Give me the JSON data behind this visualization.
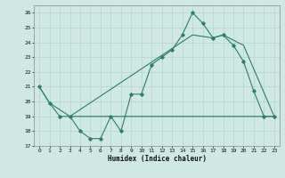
{
  "background_color": "#cfe8e4",
  "grid_color": "#b8d8d4",
  "line_color": "#2e7d6e",
  "xlabel": "Humidex (Indice chaleur)",
  "xlim": [
    -0.5,
    23.5
  ],
  "ylim": [
    17,
    26.5
  ],
  "yticks": [
    17,
    18,
    19,
    20,
    21,
    22,
    23,
    24,
    25,
    26
  ],
  "xticks": [
    0,
    1,
    2,
    3,
    4,
    5,
    6,
    7,
    8,
    9,
    10,
    11,
    12,
    13,
    14,
    15,
    16,
    17,
    18,
    19,
    20,
    21,
    22,
    23
  ],
  "line1_x": [
    0,
    1,
    2,
    3,
    4,
    5,
    6,
    7,
    8,
    9,
    10,
    11,
    12,
    13,
    14,
    15,
    16,
    17,
    18,
    19,
    20,
    21,
    22,
    23
  ],
  "line1_y": [
    21.0,
    19.9,
    19.0,
    19.0,
    18.0,
    17.5,
    17.5,
    19.0,
    18.0,
    20.5,
    20.5,
    22.5,
    23.0,
    23.5,
    24.5,
    26.0,
    25.3,
    24.3,
    24.5,
    23.8,
    22.7,
    20.7,
    19.0,
    19.0
  ],
  "line2_x": [
    0,
    1,
    3,
    23
  ],
  "line2_y": [
    21.0,
    19.9,
    19.0,
    19.0
  ],
  "line3_x": [
    3,
    15,
    17,
    18,
    20,
    23
  ],
  "line3_y": [
    19.0,
    24.5,
    24.3,
    24.5,
    23.8,
    19.0
  ]
}
